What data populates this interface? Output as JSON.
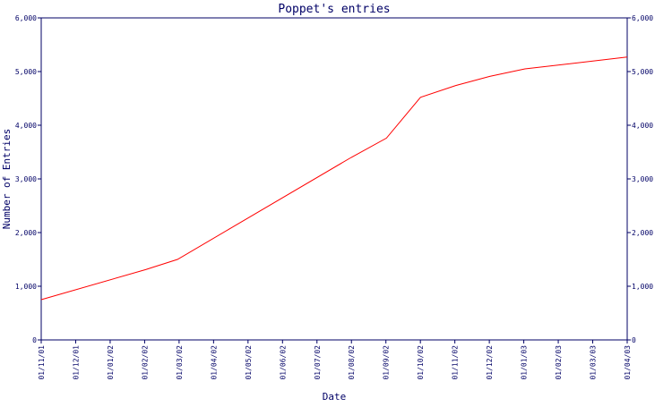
{
  "chart_data": {
    "type": "line",
    "title": "Poppet's entries",
    "xlabel": "Date",
    "ylabel": "Number of Entries",
    "ylim": [
      0,
      6000
    ],
    "yticks": [
      0,
      1000,
      2000,
      3000,
      4000,
      5000,
      6000
    ],
    "ytick_labels": [
      "0",
      "1,000",
      "2,000",
      "3,000",
      "4,000",
      "5,000",
      "6,000"
    ],
    "right_axis": true,
    "x_tick_labels": [
      "01/11/01",
      "01/12/01",
      "01/01/02",
      "01/02/02",
      "01/03/02",
      "01/04/02",
      "01/05/02",
      "01/06/02",
      "01/07/02",
      "01/08/02",
      "01/09/02",
      "01/10/02",
      "01/11/02",
      "01/12/02",
      "01/01/03",
      "01/02/03",
      "01/03/03",
      "01/04/03"
    ],
    "grid": false,
    "series": [
      {
        "color": "#ff0000",
        "x": [
          "01/11/01",
          "01/02/02",
          "01/03/02",
          "01/08/02",
          "01/09/02",
          "01/10/02",
          "01/11/02",
          "01/12/02",
          "01/01/03",
          "01/04/03"
        ],
        "values": [
          750,
          1310,
          1500,
          3400,
          3760,
          4520,
          4740,
          4910,
          5050,
          5270
        ]
      }
    ]
  },
  "colors": {
    "axis": "#000066",
    "line": "#ff0000",
    "background": "#ffffff"
  }
}
